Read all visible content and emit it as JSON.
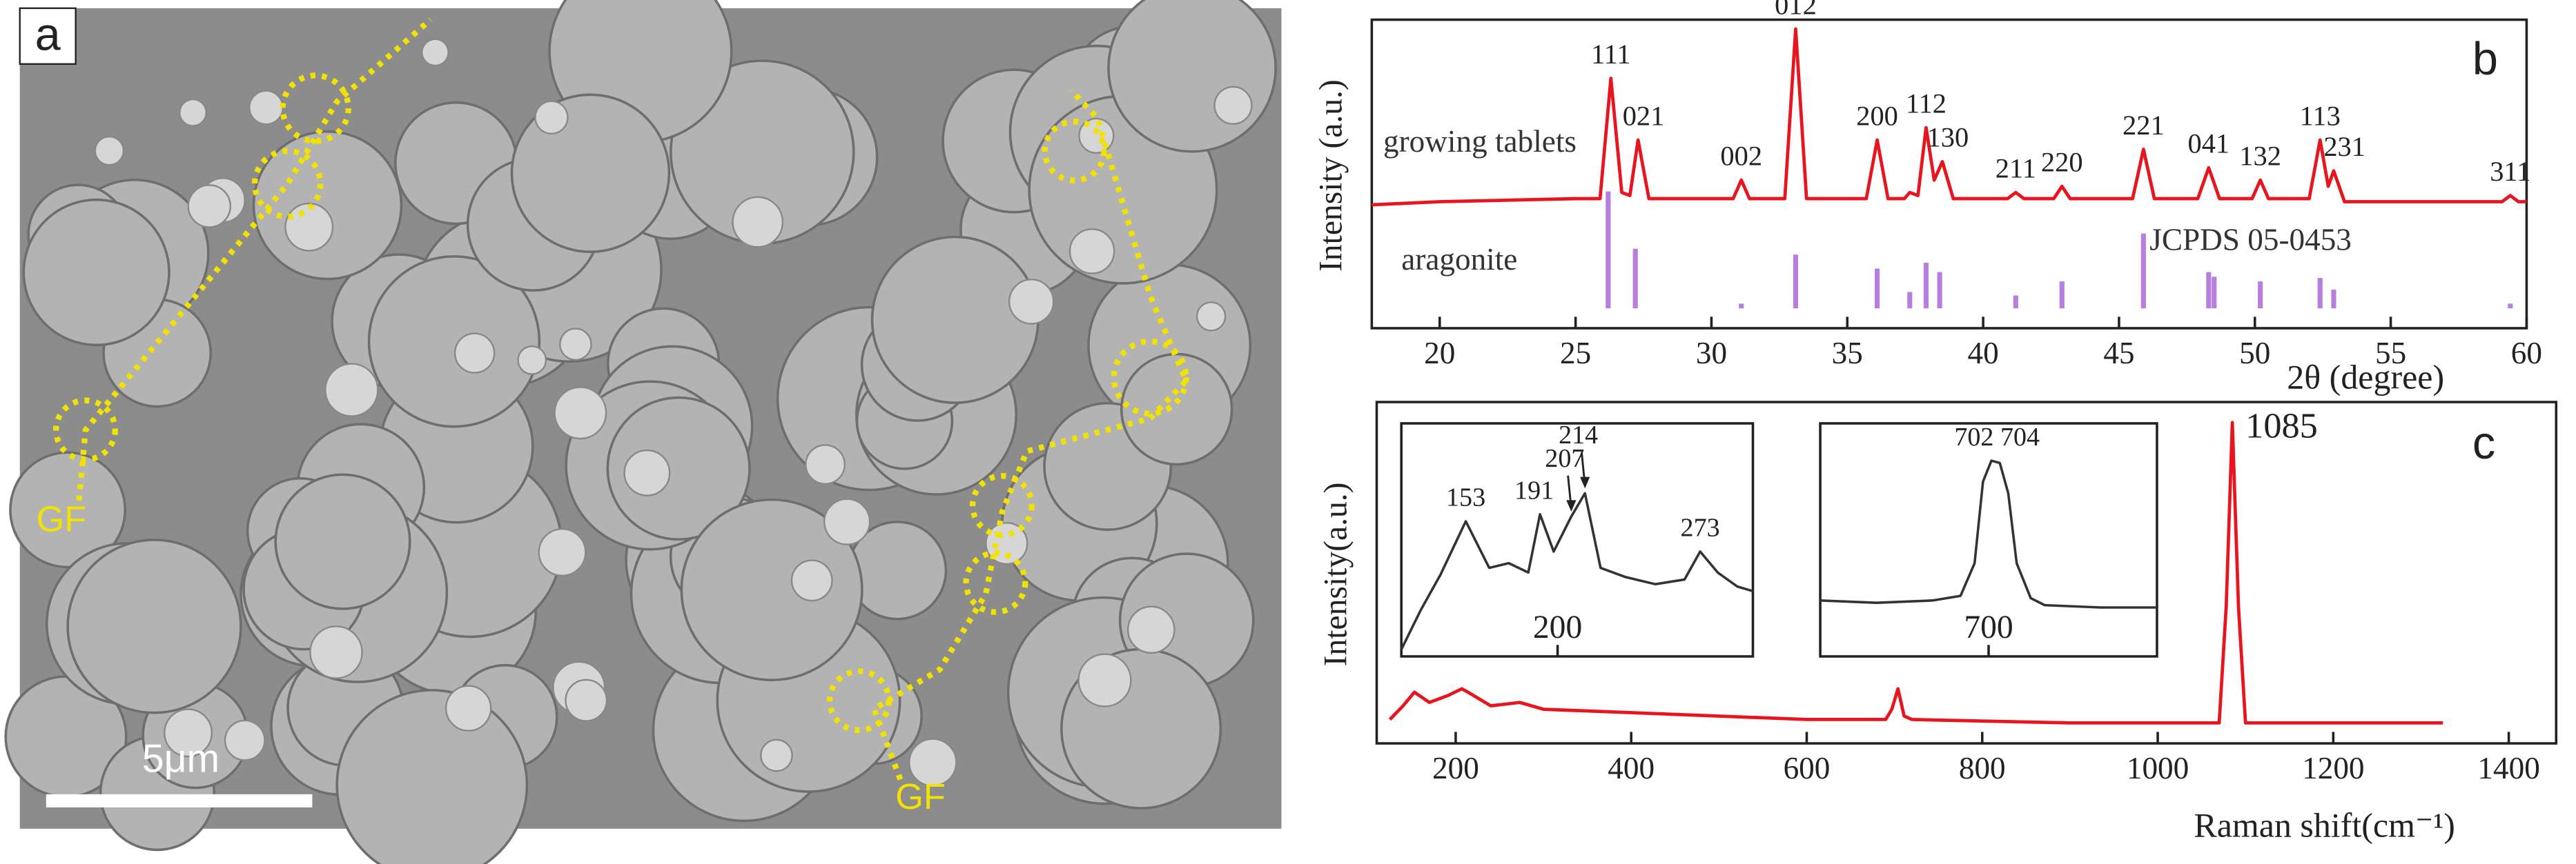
{
  "image_panel": {
    "label": "a",
    "scale_bar": "5μm",
    "annotations": [
      "GF",
      "GF"
    ]
  },
  "chart_data": [
    {
      "type": "line",
      "panel_label": "b",
      "y_label": "Intensity (a.u.)",
      "x_label": "2θ (degree)",
      "note": "JCPDS 05-0453",
      "xlim": [
        17.5,
        60
      ],
      "xticks": [
        20,
        25,
        30,
        35,
        40,
        45,
        50,
        55,
        60
      ],
      "ylim": [
        0,
        100
      ],
      "y2lim": [
        -17,
        247
      ],
      "series": [
        {
          "name": "growing tablets",
          "color": "#e8141e",
          "x": [
            17.5,
            20,
            25,
            25.9,
            26.3,
            26.7,
            27.0,
            27.3,
            27.7,
            30.8,
            31.1,
            31.4,
            32.7,
            33.1,
            33.5,
            35.7,
            36.1,
            36.5,
            37.1,
            37.3,
            37.6,
            37.9,
            38.2,
            38.5,
            38.9,
            40.9,
            41.2,
            41.5,
            42.6,
            42.9,
            43.2,
            45.5,
            45.9,
            46.3,
            47.9,
            48.3,
            48.7,
            49.9,
            50.2,
            50.5,
            52.0,
            52.4,
            52.7,
            52.9,
            53.3,
            59.1,
            59.4,
            59.7,
            60
          ],
          "values": [
            40,
            41,
            42,
            42,
            81,
            44,
            43,
            61,
            42,
            42,
            48,
            42,
            42,
            97,
            42,
            42,
            61,
            42,
            42,
            44,
            43,
            65,
            48,
            54,
            42,
            42,
            44,
            42,
            42,
            46,
            42,
            42,
            58,
            42,
            42,
            52,
            42,
            42,
            48,
            42,
            42,
            61,
            46,
            51,
            41,
            41,
            43,
            41,
            41
          ]
        },
        {
          "name": "aragonite",
          "type": "bar",
          "axis": "y2",
          "color": "#b77ee0",
          "x": [
            26.2,
            27.2,
            31.1,
            33.1,
            36.1,
            37.3,
            37.9,
            38.4,
            41.2,
            42.9,
            45.9,
            48.3,
            48.5,
            50.2,
            52.4,
            52.9,
            59.4
          ],
          "values": [
            100,
            51,
            4,
            46,
            34,
            14,
            39,
            31,
            11,
            23,
            64,
            31,
            27,
            23,
            26,
            16,
            4
          ]
        }
      ],
      "annotations": [
        {
          "text": "111",
          "x": 26.3,
          "y": 81
        },
        {
          "text": "021",
          "x": 27.5,
          "y": 61
        },
        {
          "text": "002",
          "x": 31.1,
          "y": 48
        },
        {
          "text": "012",
          "x": 33.1,
          "y": 97
        },
        {
          "text": "200",
          "x": 36.1,
          "y": 61
        },
        {
          "text": "112",
          "x": 37.9,
          "y": 65
        },
        {
          "text": "130",
          "x": 38.7,
          "y": 54
        },
        {
          "text": "211",
          "x": 41.2,
          "y": 44
        },
        {
          "text": "220",
          "x": 42.9,
          "y": 46
        },
        {
          "text": "221",
          "x": 45.9,
          "y": 58
        },
        {
          "text": "041",
          "x": 48.3,
          "y": 52
        },
        {
          "text": "132",
          "x": 50.2,
          "y": 48
        },
        {
          "text": "113",
          "x": 52.4,
          "y": 61
        },
        {
          "text": "231",
          "x": 53.3,
          "y": 51
        },
        {
          "text": "311",
          "x": 59.4,
          "y": 43
        }
      ]
    },
    {
      "type": "line",
      "panel_label": "c",
      "y_label": "Intensity(a.u.)",
      "x_label": "Raman shift(cm⁻¹)",
      "xlim": [
        110,
        1454
      ],
      "xticks": [
        200,
        400,
        600,
        800,
        1000,
        1200,
        1400
      ],
      "ylim": [
        0,
        100
      ],
      "series": [
        {
          "color": "#e8141e",
          "x": [
            125,
            140,
            153,
            170,
            191,
            207,
            214,
            240,
            273,
            300,
            400,
            500,
            600,
            690,
            697,
            704,
            711,
            720,
            900,
            1070,
            1078,
            1085,
            1092,
            1100,
            1200,
            1325
          ],
          "values": [
            7,
            11,
            15,
            12,
            14,
            16,
            15,
            11,
            12,
            10,
            9,
            8,
            7,
            7,
            10,
            16,
            8,
            7,
            6,
            6,
            40,
            94,
            40,
            6,
            6,
            6
          ]
        }
      ],
      "annotations": [
        {
          "text": "1085",
          "x": 1085,
          "y": 94,
          "position": "right"
        }
      ]
    },
    {
      "type": "line",
      "xlim": [
        120,
        300
      ],
      "xticks": [
        200
      ],
      "ylim": [
        0,
        100
      ],
      "series": [
        {
          "color": "#333333",
          "x": [
            120,
            130,
            140,
            153,
            165,
            175,
            185,
            191,
            198,
            207,
            214,
            222,
            235,
            250,
            265,
            273,
            282,
            292,
            300
          ],
          "values": [
            3,
            20,
            35,
            58,
            38,
            40,
            36,
            61,
            45,
            60,
            70,
            38,
            34,
            31,
            33,
            45,
            36,
            30,
            28
          ]
        }
      ],
      "annotations": [
        {
          "text": "153",
          "x": 153,
          "y": 58
        },
        {
          "text": "191",
          "x": 188,
          "y": 61
        },
        {
          "text": "207",
          "x": 207,
          "y": 60,
          "arrow": true
        },
        {
          "text": "214",
          "x": 214,
          "y": 70,
          "arrow": true
        },
        {
          "text": "273",
          "x": 273,
          "y": 45
        }
      ]
    },
    {
      "type": "line",
      "xlim": [
        640,
        760
      ],
      "xticks": [
        700
      ],
      "ylim": [
        0,
        100
      ],
      "series": [
        {
          "color": "#333333",
          "x": [
            640,
            660,
            680,
            690,
            695,
            698,
            701,
            704,
            707,
            710,
            715,
            720,
            740,
            760
          ],
          "values": [
            24,
            23,
            24,
            26,
            40,
            75,
            84,
            83,
            70,
            40,
            25,
            22,
            21,
            21
          ]
        }
      ],
      "annotations": [
        {
          "text": "702 704",
          "x": 703,
          "y": 84
        }
      ]
    }
  ]
}
